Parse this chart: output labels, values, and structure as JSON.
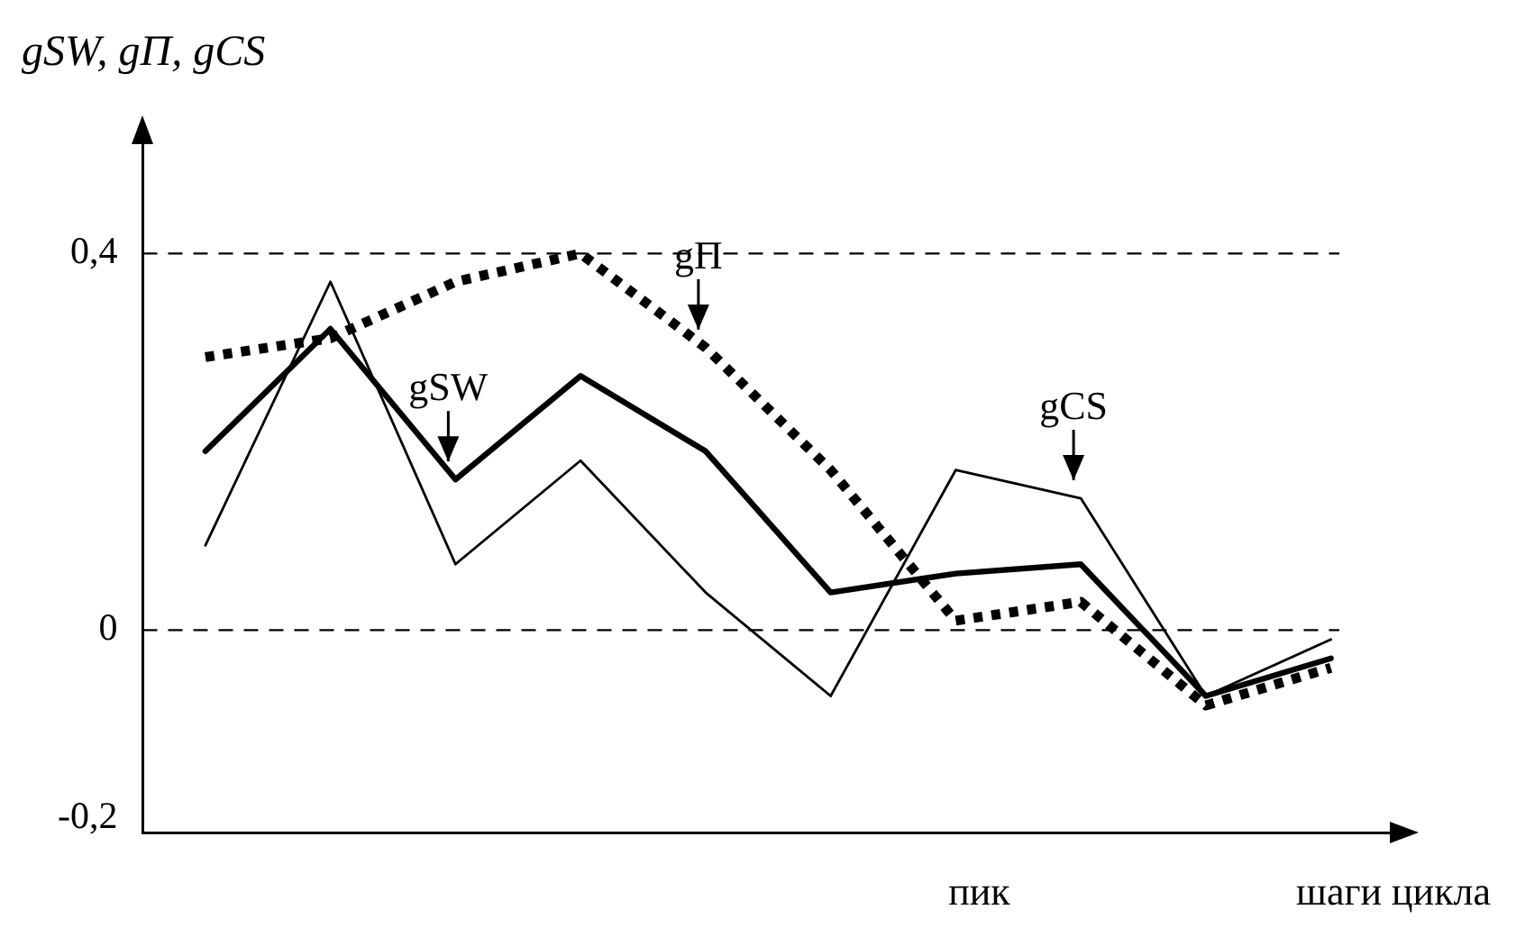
{
  "chart_data": {
    "type": "line",
    "ylabel": "gSW, gП, gCS",
    "xlabel": "шаги цикла",
    "annotations": [
      "пик"
    ],
    "categories": [
      null,
      null,
      null,
      null,
      null,
      null,
      null,
      null,
      null,
      null
    ],
    "series": [
      {
        "name": "gSW",
        "color": "#000000",
        "line_style": "solid",
        "values": [
          0.19,
          0.32,
          0.16,
          0.27,
          0.19,
          0.04,
          0.06,
          0.07,
          -0.07,
          -0.03
        ]
      },
      {
        "name": "gП",
        "color": "#000000",
        "line_style": "dotted",
        "values": [
          0.29,
          0.31,
          0.37,
          0.4,
          0.3,
          0.17,
          0.01,
          0.03,
          -0.08,
          -0.04
        ]
      },
      {
        "name": "gCS",
        "color": "#000000",
        "line_style": "solid",
        "values": [
          0.09,
          0.37,
          0.07,
          0.18,
          0.04,
          -0.07,
          0.17,
          0.14,
          -0.07,
          -0.01
        ]
      }
    ],
    "ylim": [
      -0.215,
      0.52
    ],
    "yticks": [
      {
        "value": 0.4,
        "label": "0,4"
      },
      {
        "value": 0,
        "label": "0"
      },
      {
        "value": -0.2,
        "label": "-0,2"
      }
    ],
    "ref_lines": [
      {
        "axis": "y",
        "value": 0.4,
        "line_style": "dashed"
      },
      {
        "axis": "y",
        "value": 0,
        "line_style": "dashed"
      }
    ],
    "grid": false,
    "legend": false,
    "marker": "none"
  }
}
